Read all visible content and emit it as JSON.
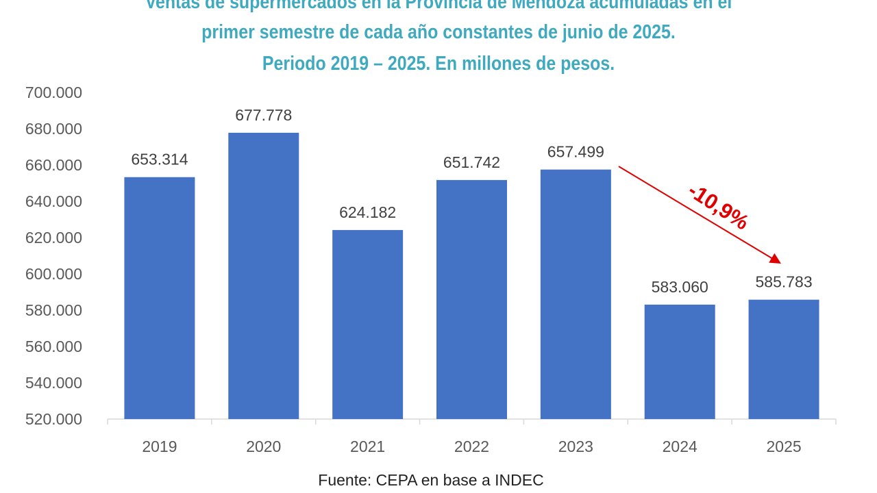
{
  "chart_data": {
    "type": "bar",
    "title_lines": [
      "Ventas de supermercados en la Provincia de Mendoza acumuladas en el",
      "primer semestre de cada año constantes de junio de 2025.",
      "Periodo 2019 – 2025. En millones de pesos."
    ],
    "categories": [
      "2019",
      "2020",
      "2021",
      "2022",
      "2023",
      "2024",
      "2025"
    ],
    "values": [
      653314,
      677778,
      624182,
      651742,
      657499,
      583060,
      585783
    ],
    "data_labels": [
      "653.314",
      "677.778",
      "624.182",
      "651.742",
      "657.499",
      "583.060",
      "585.783"
    ],
    "y_ticks": [
      "520.000",
      "540.000",
      "560.000",
      "580.000",
      "600.000",
      "620.000",
      "640.000",
      "660.000",
      "680.000",
      "700.000"
    ],
    "ylim": [
      520000,
      700000
    ],
    "xlabel": "",
    "ylabel": "",
    "bar_color": "#4472c4",
    "annotation": {
      "text": "-10,9%",
      "color": "#e00000",
      "from": "2023",
      "to": "2025"
    },
    "source": "Fuente: CEPA en base a INDEC",
    "grid": false
  }
}
